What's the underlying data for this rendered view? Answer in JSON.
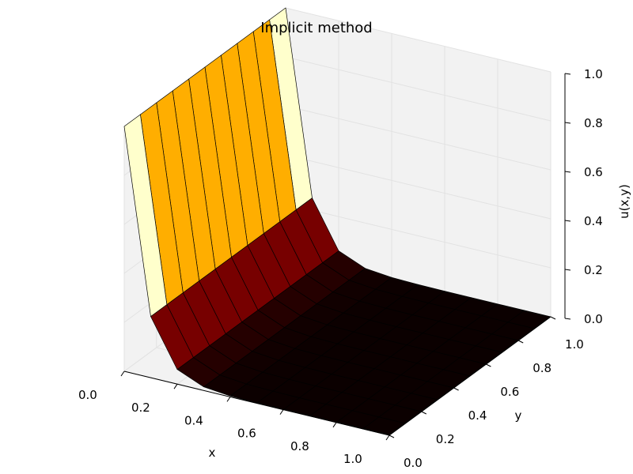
{
  "chart_data": {
    "type": "surface",
    "title": "Implicit method",
    "xlabel": "x",
    "ylabel": "y",
    "zlabel": "u(x,y)",
    "xlim": [
      0.0,
      1.0
    ],
    "ylim": [
      0.0,
      1.0
    ],
    "zlim": [
      0.0,
      1.0
    ],
    "x_ticks": [
      "0.0",
      "0.2",
      "0.4",
      "0.6",
      "0.8",
      "1.0"
    ],
    "y_ticks": [
      "0.0",
      "0.2",
      "0.4",
      "0.6",
      "0.8",
      "1.0"
    ],
    "z_ticks": [
      "0.0",
      "0.2",
      "0.4",
      "0.6",
      "0.8",
      "1.0"
    ],
    "grid": true,
    "colormap": "hot",
    "x": [
      0.0,
      0.1,
      0.2,
      0.3,
      0.4,
      0.5,
      0.6,
      0.7,
      0.8,
      0.9,
      1.0
    ],
    "y": [
      0.0,
      0.1,
      0.2,
      0.3,
      0.4,
      0.5,
      0.6,
      0.7,
      0.8,
      0.9,
      1.0
    ],
    "z_by_x_column": [
      1.0,
      0.25,
      0.06,
      0.015,
      0.004,
      0.001,
      0.0,
      0.0,
      0.0,
      0.0,
      0.0
    ],
    "colors": {
      "pane": "#f2f2f2",
      "pane_grid": "#e2e2e2",
      "edge": "#000000"
    }
  }
}
